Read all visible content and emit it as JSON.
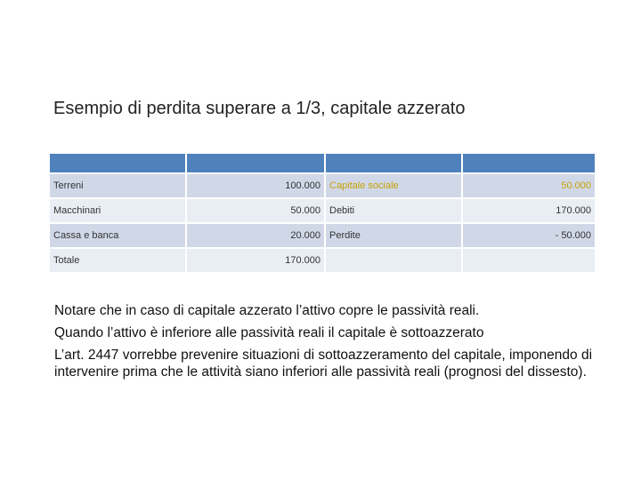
{
  "title": "Esempio di perdita superare a 1/3, capitale azzerato",
  "table": {
    "headers": [
      "",
      "",
      "",
      ""
    ],
    "rows": [
      [
        "Terreni",
        "100.000",
        "Capitale sociale",
        "50.000"
      ],
      [
        "Macchinari",
        "50.000",
        "Debiti",
        "170.000"
      ],
      [
        "Cassa e banca",
        "20.000",
        "Perdite",
        "- 50.000"
      ],
      [
        "Totale",
        "170.000",
        "",
        ""
      ]
    ]
  },
  "notes": [
    "Notare che in caso di capitale azzerato l’attivo copre le passività reali.",
    "Quando l’attivo è inferiore alle passività reali il capitale è sottoazzerato",
    "L’art. 2447 vorrebbe prevenire situazioni di sottoazzeramento del capitale, imponendo di intervenire prima che le attività siano inferiori alle passività reali (prognosi del dissesto)."
  ],
  "colors": {
    "header": "#4f81bd",
    "row_odd": "#d0d8e8",
    "row_even": "#e9edf4",
    "highlight_text": "#c8a000"
  }
}
